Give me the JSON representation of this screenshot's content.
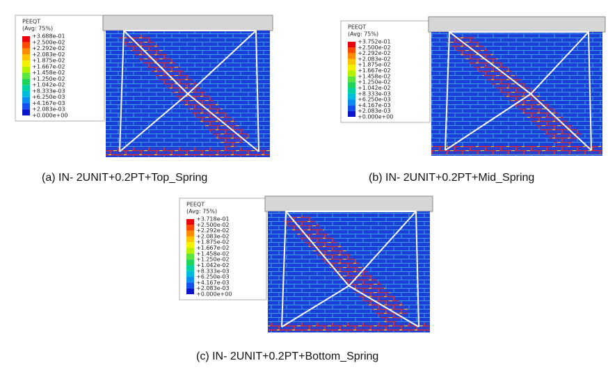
{
  "panels": [
    {
      "legend_title": "PEEQT",
      "legend_subtitle": "(Avg: 75%)",
      "legend_values": [
        "+3.688e-01",
        "+2.500e-02",
        "+2.292e-02",
        "+2.083e-02",
        "+1.875e-02",
        "+1.667e-02",
        "+1.458e-02",
        "+1.250e-02",
        "+1.042e-02",
        "+8.333e-03",
        "+6.250e-03",
        "+4.167e-03",
        "+2.083e-03",
        "+0.000e+00"
      ],
      "caption": "(a)  IN- 2UNIT+0.2PT+Top_Spring"
    },
    {
      "legend_title": "PEEQT",
      "legend_subtitle": "(Avg: 75%)",
      "legend_values": [
        "+3.752e-01",
        "+2.500e-02",
        "+2.292e-02",
        "+2.083e-02",
        "+1.875e-02",
        "+1.667e-02",
        "+1.458e-02",
        "+1.250e-02",
        "+1.042e-02",
        "+8.333e-03",
        "+6.250e-03",
        "+4.167e-03",
        "+2.083e-03",
        "+0.000e+00"
      ],
      "caption": "(b)  IN- 2UNIT+0.2PT+Mid_Spring"
    },
    {
      "legend_title": "PEEQT",
      "legend_subtitle": "(Avg: 75%)",
      "legend_values": [
        "+3.718e-01",
        "+2.500e-02",
        "+2.292e-02",
        "+2.083e-02",
        "+1.875e-02",
        "+1.667e-02",
        "+1.458e-02",
        "+1.250e-02",
        "+1.042e-02",
        "+8.333e-03",
        "+6.250e-03",
        "+4.167e-03",
        "+2.083e-03",
        "+0.000e+00"
      ],
      "caption": "(c)  IN- 2UNIT+0.2PT+Bottom_Spring"
    }
  ]
}
